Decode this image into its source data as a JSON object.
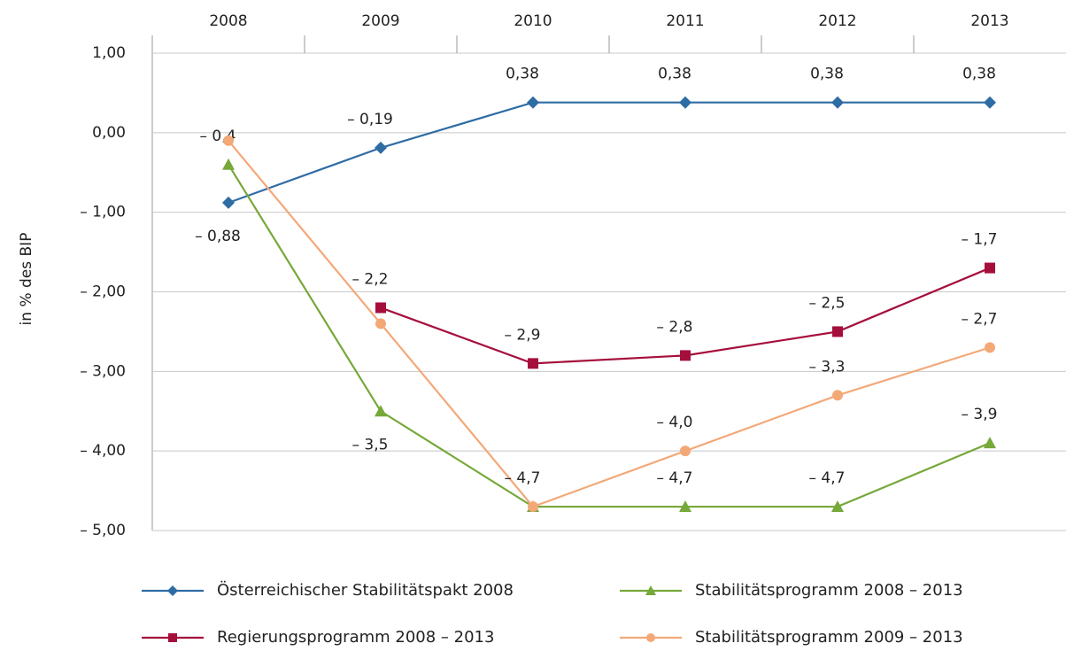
{
  "chart_data": {
    "type": "line",
    "y_label": "in % des BIP",
    "categories": [
      "2008",
      "2009",
      "2010",
      "2011",
      "2012",
      "2013"
    ],
    "ylim": [
      -5,
      1
    ],
    "yticks": [
      {
        "value": 1,
        "label": "1,00"
      },
      {
        "value": 0,
        "label": "0,00"
      },
      {
        "value": -1,
        "label": "– 1,00"
      },
      {
        "value": -2,
        "label": "– 2,00"
      },
      {
        "value": -3,
        "label": "– 3,00"
      },
      {
        "value": -4,
        "label": "– 4,00"
      },
      {
        "value": -5,
        "label": "– 5,00"
      }
    ],
    "grid": true,
    "series": [
      {
        "name": "Österreichischer Stabilitätspakt 2008",
        "color": "#2e6ca4",
        "marker": "diamond",
        "values": [
          -0.88,
          -0.19,
          0.38,
          0.38,
          0.38,
          0.38
        ],
        "value_labels": [
          "– 0,88",
          "– 0,19",
          "0,38",
          "0,38",
          "0,38",
          "0,38"
        ]
      },
      {
        "name": "Regierungsprogramm 2008 – 2013",
        "color": "#a50f3c",
        "marker": "square",
        "values": [
          null,
          -2.2,
          -2.9,
          -2.8,
          -2.5,
          -1.7
        ],
        "value_labels": [
          null,
          "– 2,2",
          "– 2,9",
          "– 2,8",
          "– 2,5",
          "– 1,7"
        ]
      },
      {
        "name": "Stabilitätsprogramm 2008 – 2013",
        "color": "#76a83a",
        "marker": "triangle",
        "values": [
          -0.4,
          -3.5,
          -4.7,
          -4.7,
          -4.7,
          -3.9
        ],
        "value_labels": [
          "– 0,4",
          "– 3,5",
          "– 4,7",
          "– 4,7",
          "– 4,7",
          "– 3,9"
        ]
      },
      {
        "name": "Stabilitätsprogramm 2009 – 2013",
        "color": "#f3a878",
        "marker": "circle",
        "values": [
          -0.1,
          -2.4,
          -4.7,
          -4.0,
          -3.3,
          -2.7
        ],
        "value_labels": [
          null,
          null,
          null,
          "– 4,0",
          "– 3,3",
          "– 2,7"
        ]
      }
    ]
  }
}
